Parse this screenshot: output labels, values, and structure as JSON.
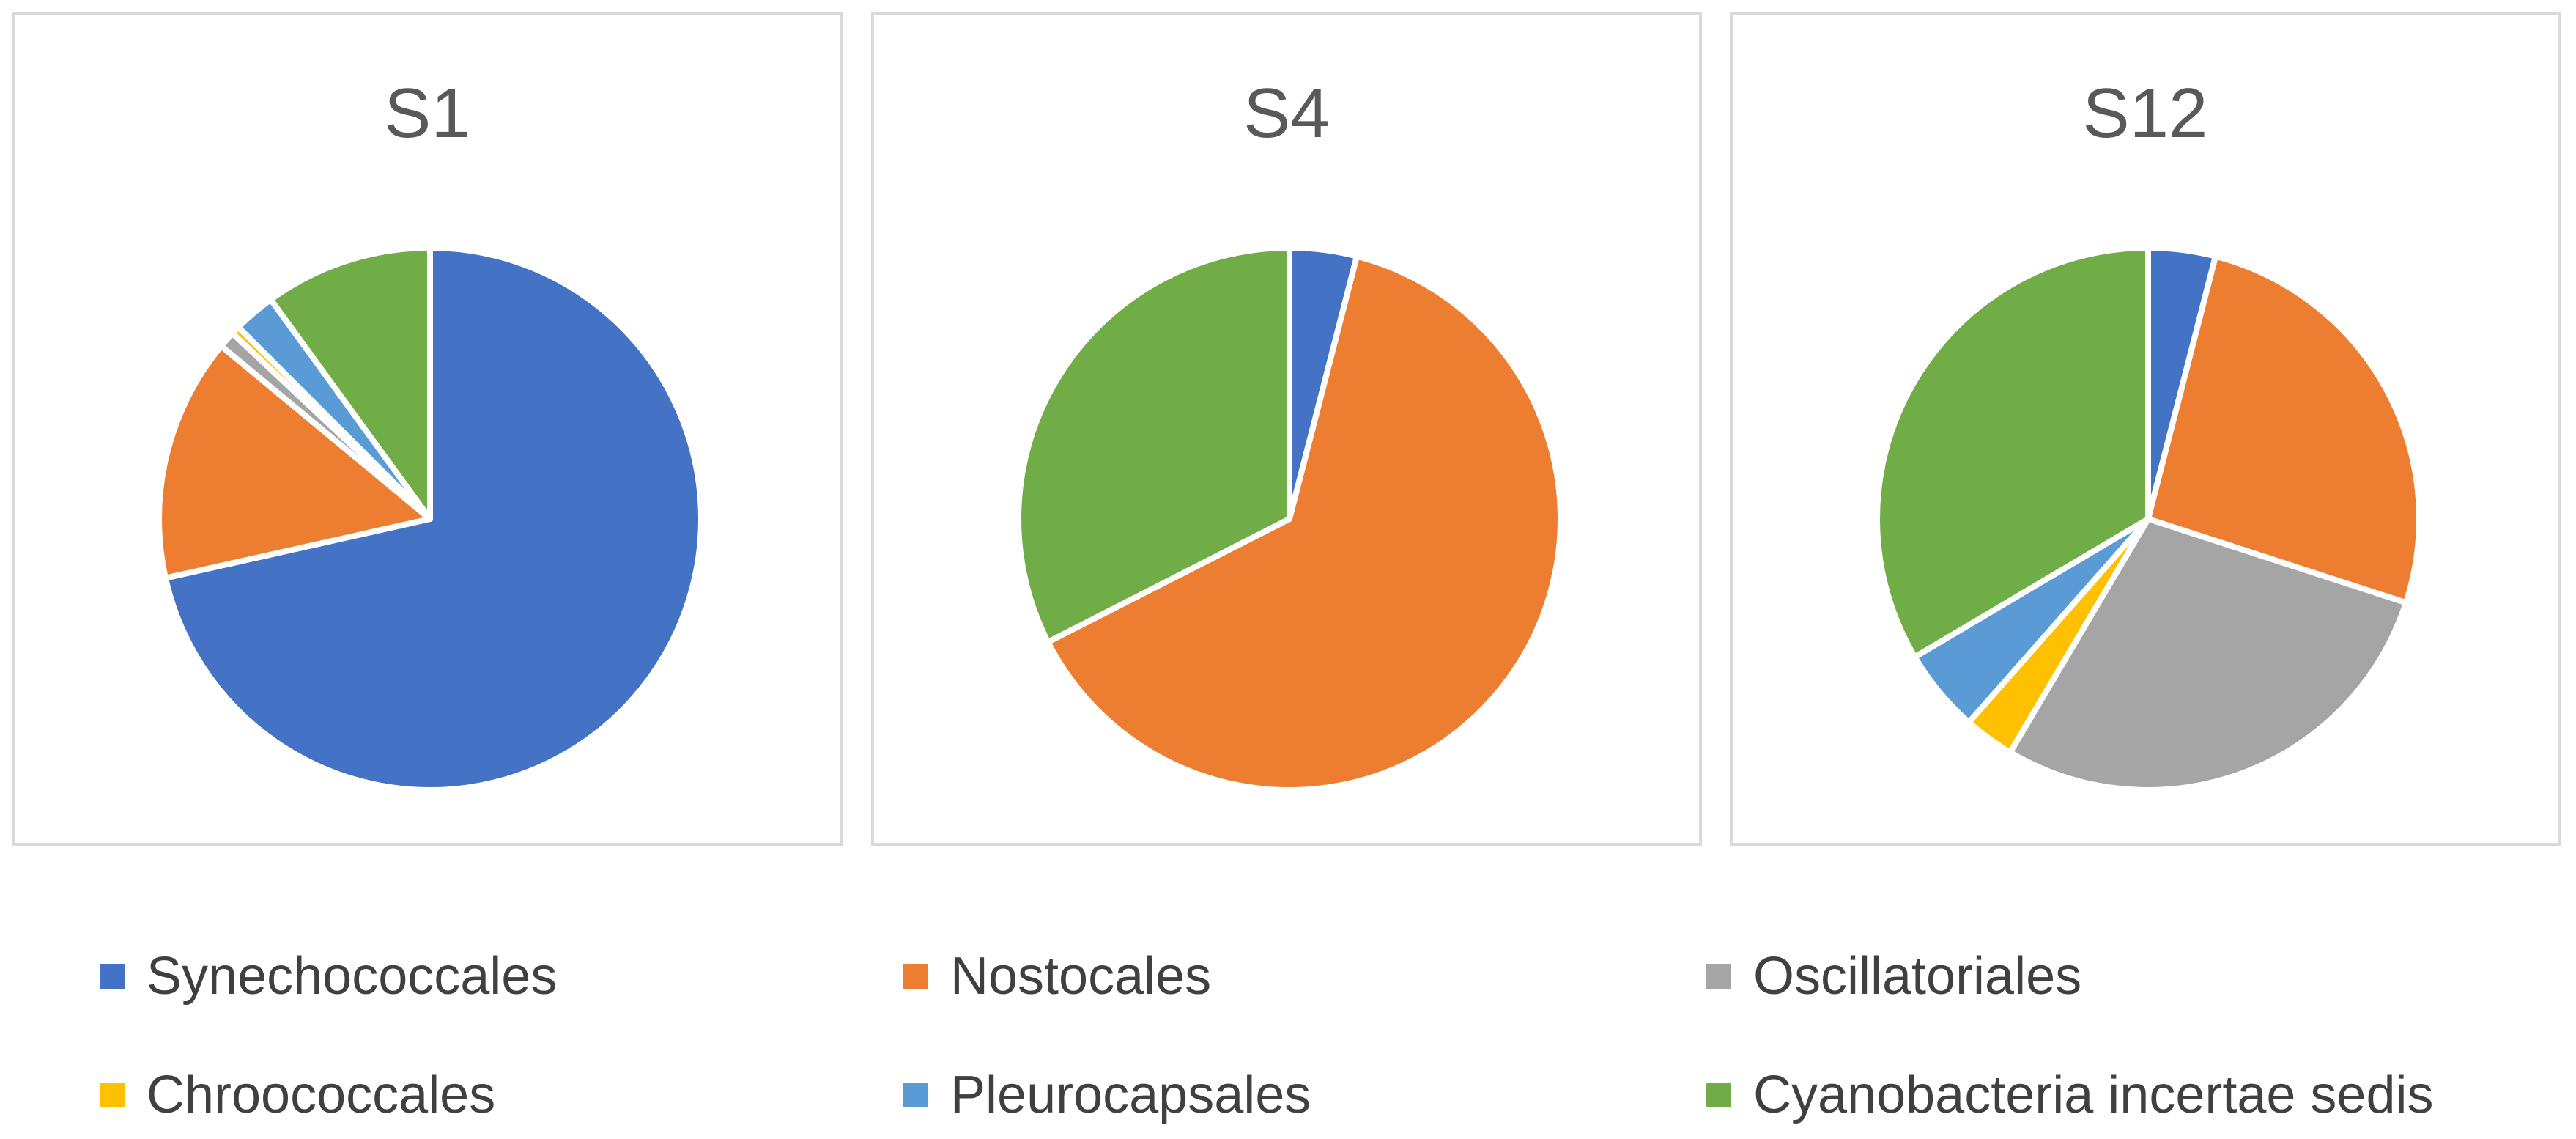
{
  "chart_data": [
    {
      "type": "pie",
      "title": "S1",
      "labels": [
        "Synechococcales",
        "Nostocales",
        "Oscillatoriales",
        "Chroococcales",
        "Pleurocapsales",
        "Cyanobacteria incertae sedis"
      ],
      "values": [
        71.5,
        14.5,
        1.0,
        0.5,
        2.5,
        10.0
      ]
    },
    {
      "type": "pie",
      "title": "S4",
      "labels": [
        "Synechococcales",
        "Nostocales",
        "Oscillatoriales",
        "Chroococcales",
        "Pleurocapsales",
        "Cyanobacteria incertae sedis"
      ],
      "values": [
        4.0,
        63.5,
        0,
        0,
        0,
        32.5
      ]
    },
    {
      "type": "pie",
      "title": "S12",
      "labels": [
        "Synechococcales",
        "Nostocales",
        "Oscillatoriales",
        "Chroococcales",
        "Pleurocapsales",
        "Cyanobacteria incertae sedis"
      ],
      "values": [
        4.0,
        26.0,
        28.5,
        3.0,
        5.0,
        33.5
      ]
    }
  ],
  "legend": {
    "position": "bottom",
    "items": [
      {
        "label": "Synechococcales",
        "color": "#4472C4"
      },
      {
        "label": "Nostocales",
        "color": "#ED7D31"
      },
      {
        "label": "Oscillatoriales",
        "color": "#A5A5A5"
      },
      {
        "label": "Chroococcales",
        "color": "#FFC000"
      },
      {
        "label": "Pleurocapsales",
        "color": "#5B9BD5"
      },
      {
        "label": "Cyanobacteria incertae sedis",
        "color": "#70AD47"
      }
    ]
  }
}
